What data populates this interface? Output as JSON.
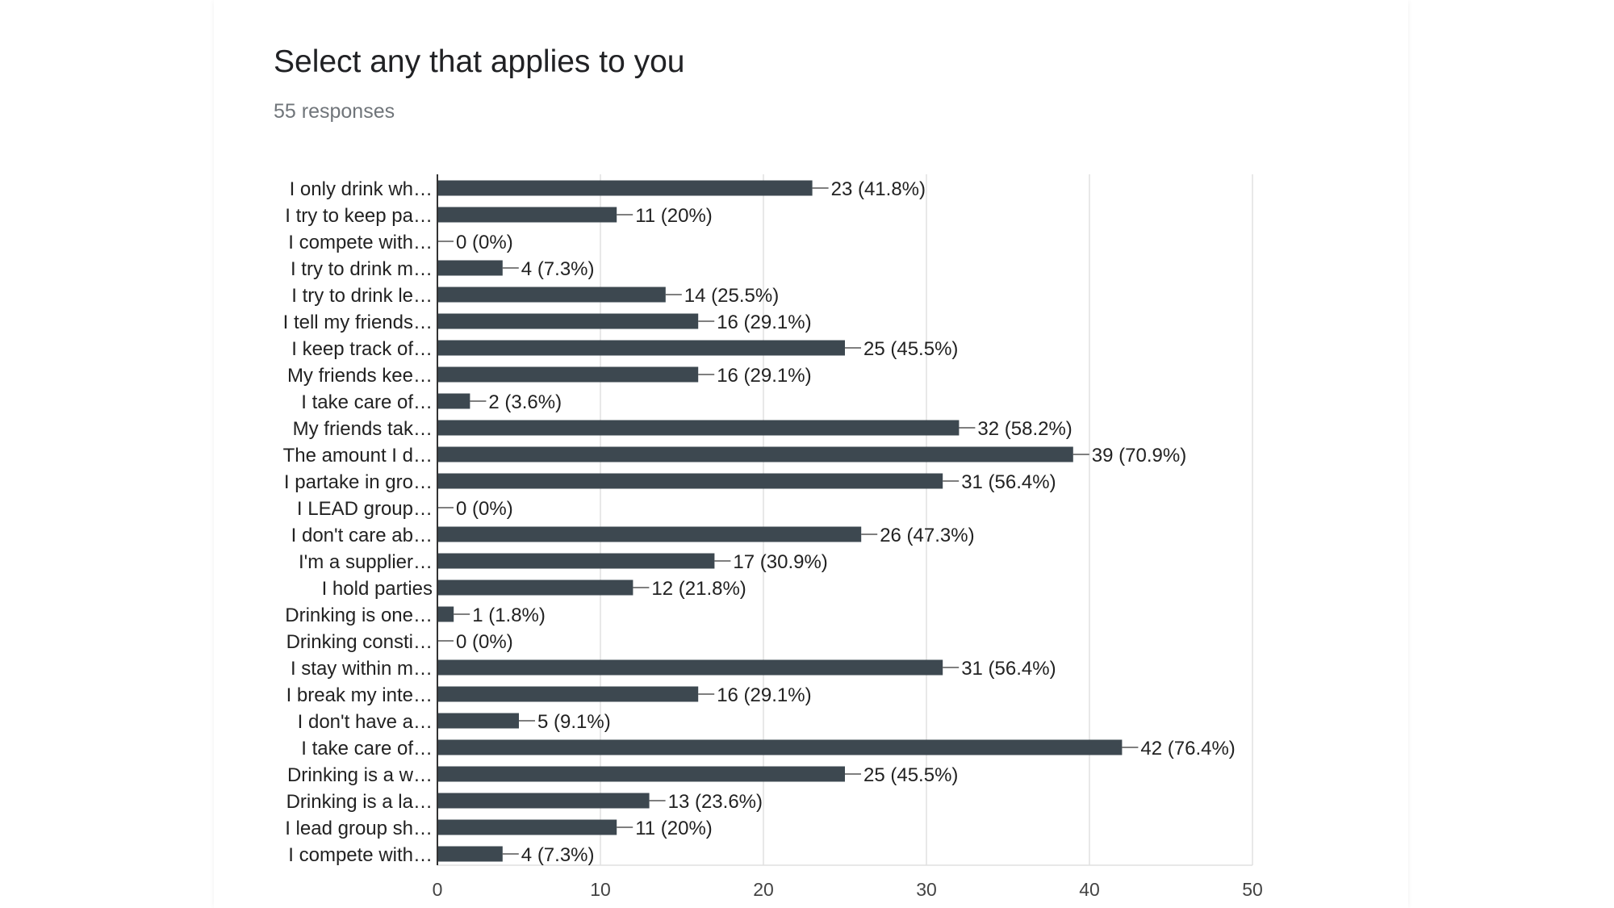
{
  "header": {
    "title": "Select any that applies to you",
    "responses": "55 responses"
  },
  "colors": {
    "bar": "#3d4850",
    "grid": "#e0e0e0",
    "axis": "#333333"
  },
  "chart_data": {
    "type": "bar",
    "orientation": "horizontal",
    "title": "Select any that applies to you",
    "subtitle": "55 responses",
    "xlim": [
      0,
      50
    ],
    "xticks": [
      0,
      10,
      20,
      30,
      40,
      50
    ],
    "grid": true,
    "categories": [
      "I only drink wh…",
      "I try to keep pa…",
      "I compete with…",
      "I try to drink m…",
      "I try to drink le…",
      "I tell my friends…",
      "I keep track of…",
      "My friends kee…",
      "I take care of…",
      "My friends tak…",
      "The amount I d…",
      "I partake in gro…",
      "I LEAD group…",
      "I don't care ab…",
      "I'm a supplier…",
      "I hold parties",
      "Drinking is one…",
      "Drinking consti…",
      "I stay within m…",
      "I break my inte…",
      "I don't have a…",
      "I take care of…",
      "Drinking is a w…",
      "Drinking is a la…",
      "I lead group sh…",
      "I compete with…"
    ],
    "values": [
      23,
      11,
      0,
      4,
      14,
      16,
      25,
      16,
      2,
      32,
      39,
      31,
      0,
      26,
      17,
      12,
      1,
      0,
      31,
      16,
      5,
      42,
      25,
      13,
      11,
      4
    ],
    "labels": [
      "23 (41.8%)",
      "11 (20%)",
      "0 (0%)",
      "4 (7.3%)",
      "14 (25.5%)",
      "16 (29.1%)",
      "25 (45.5%)",
      "16 (29.1%)",
      "2 (3.6%)",
      "32 (58.2%)",
      "39 (70.9%)",
      "31 (56.4%)",
      "0 (0%)",
      "26 (47.3%)",
      "17 (30.9%)",
      "12 (21.8%)",
      "1 (1.8%)",
      "0 (0%)",
      "31 (56.4%)",
      "16 (29.1%)",
      "5 (9.1%)",
      "42 (76.4%)",
      "25 (45.5%)",
      "13 (23.6%)",
      "11 (20%)",
      "4 (7.3%)"
    ]
  }
}
